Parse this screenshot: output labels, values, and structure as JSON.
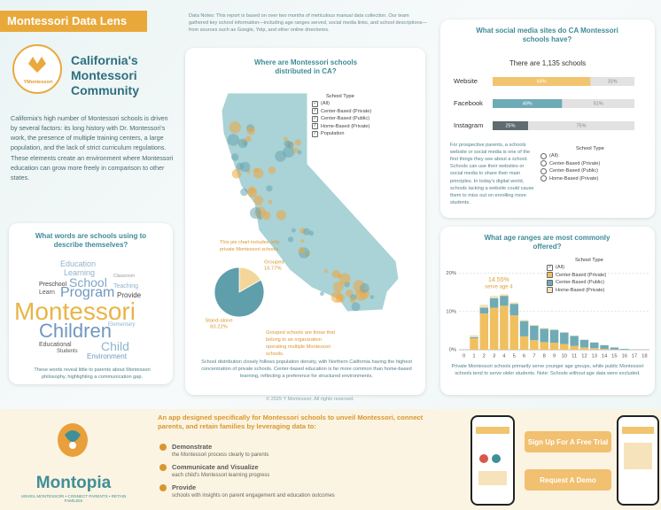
{
  "header": {
    "title": "Montessori Data Lens",
    "data_notes": "Data Notes: This report is based on over two months of meticulous manual data collection. Our team gathered key school information—including age ranges served, social media links, and school descriptions—from sources such as Google, Yelp, and other online directories.",
    "brand": "YMontessori",
    "heading": "California's Montessori Community",
    "intro": "California's high number of Montessori schools is driven by several factors: its long history with Dr. Montessori's work, the presence of multiple training centers, a large population, and the lack of strict curriculum regulations. These elements create an environment where Montessori education can grow more freely in comparison to other states."
  },
  "word_cloud": {
    "title": "What words are schools using to describe themselves?",
    "words": [
      "Education",
      "Learning",
      "Classroom",
      "Preschool",
      "School",
      "Teaching",
      "Learn",
      "Program",
      "Provide",
      "Montessori",
      "Elementary",
      "Children",
      "Child",
      "Educational",
      "Students",
      "Environment"
    ],
    "caption": "These words reveal little to parents about Montessori philosophy, highlighting a communication gap."
  },
  "map_panel": {
    "title": "Where are Montessori schools distributed in CA?",
    "legend_title": "School Type",
    "legend_items": [
      "(All)",
      "Center-Based (Private)",
      "Center-Based (Public)",
      "Home-Based (Private)",
      "Population"
    ],
    "pie_note": "This pie chart includes only private Montessori schools.",
    "grouped_note": "Grouped schools are those that belong to an organization operating multiple Montessori schools.",
    "caption": "School distribution closely follows population density, with Northern California having the highest concentration of private schools. Center-based education is far more common than home-based learning, reflecting a preference for structured environments.",
    "copyright": "© 2025 Y Montessori. All rights reserved."
  },
  "social_panel": {
    "caption": "For prospective parents, a schools website or social media is one of the first things they see about a school. Schools can use their websites or social media to share their main principles. In today's digital world, schools lacking a website could cause them to miss out on enrolling more students.",
    "radio_title": "School Type",
    "radio_items": [
      "(All)",
      "Center-Based (Private)",
      "Center-Based (Public)",
      "Home-Based (Private)"
    ]
  },
  "age_panel": {
    "caption": "Private Montessori schools primarily serve younger age groups, while public Montessori schools tend to serve older students. Note: Schools without age data were excluded."
  },
  "chart_data": [
    {
      "type": "hbar",
      "title": "What social media sites do CA Montessori schools have?",
      "subtitle": "There are 1,135 schools",
      "categories": [
        "Website",
        "Facebook",
        "Instagram"
      ],
      "series": [
        {
          "colors": [
            "#f2c46f",
            "#6fabb6",
            "#5e6b6f"
          ],
          "values": [
            69,
            49,
            25
          ],
          "value_labels": [
            "69%",
            "49%",
            "25%"
          ]
        },
        {
          "color": "#e2e2e2",
          "values": [
            31,
            51,
            75
          ],
          "value_labels": [
            "31%",
            "51%",
            "75%"
          ]
        }
      ],
      "xlim": [
        0,
        100
      ]
    },
    {
      "type": "pie",
      "categories": [
        "Grouped",
        "Stand-alone"
      ],
      "values": [
        16.77,
        83.22
      ],
      "value_labels": [
        "16.77%",
        "83.22%"
      ],
      "colors": [
        "#f3d79a",
        "#5f9eab"
      ]
    },
    {
      "type": "stacked",
      "title": "What age ranges are most commonly offered?",
      "legend_title": "School Type",
      "legend_all": "(All)",
      "x": [
        0,
        1,
        2,
        3,
        4,
        5,
        6,
        7,
        8,
        9,
        10,
        11,
        12,
        13,
        14,
        15,
        16,
        17,
        18
      ],
      "series": [
        {
          "name": "Center-Based (Private)",
          "color": "#f0c060",
          "values": [
            0,
            3.0,
            9.5,
            11,
            11.5,
            9,
            3.5,
            2.5,
            2,
            1.8,
            1.5,
            1,
            0.6,
            0.4,
            0.2,
            0.1,
            0,
            0,
            0
          ]
        },
        {
          "name": "Center-Based (Public)",
          "color": "#6fabb6",
          "values": [
            0,
            0.3,
            1.5,
            2.5,
            2.6,
            3,
            4,
            3.8,
            3.5,
            3.4,
            3,
            2.6,
            2,
            1.5,
            1,
            0.5,
            0.2,
            0,
            0
          ]
        },
        {
          "name": "Home-Based (Private)",
          "color": "#f6e2bb",
          "values": [
            0,
            0.5,
            0.8,
            0.6,
            0.45,
            0.4,
            0.3,
            0.2,
            0.2,
            0.1,
            0.1,
            0.1,
            0,
            0,
            0,
            0,
            0,
            0,
            0
          ]
        }
      ],
      "ylim": [
        0,
        22
      ],
      "yticks": [
        {
          "value": 0,
          "label": "0%"
        },
        {
          "value": 10,
          "label": "10%"
        },
        {
          "value": 20,
          "label": "20%"
        }
      ],
      "grid": true,
      "annotation": {
        "x": 4,
        "value": 14.55,
        "label": "14.55%",
        "text": "serve age 4"
      }
    }
  ],
  "footer": {
    "pitch": "An app designed specifically for Montessori schools to unveil Montessori, connect parents, and retain families by leveraging data to:",
    "items": [
      {
        "head": "Demonstrate",
        "text": "the Montessori process clearly to parents"
      },
      {
        "head": "Communicate and Visualize",
        "text": "each child's Montessori learning progress"
      },
      {
        "head": "Provide",
        "text": "schools with insights on parent engagement and education outcomes"
      }
    ],
    "brand": "Montopia",
    "tagline": "UNVEIL MONTESSORI • CONNECT PARENTS • RETAIN FAMILIES",
    "buttons": [
      "Sign Up For A Free Trial",
      "Request A Demo"
    ]
  }
}
